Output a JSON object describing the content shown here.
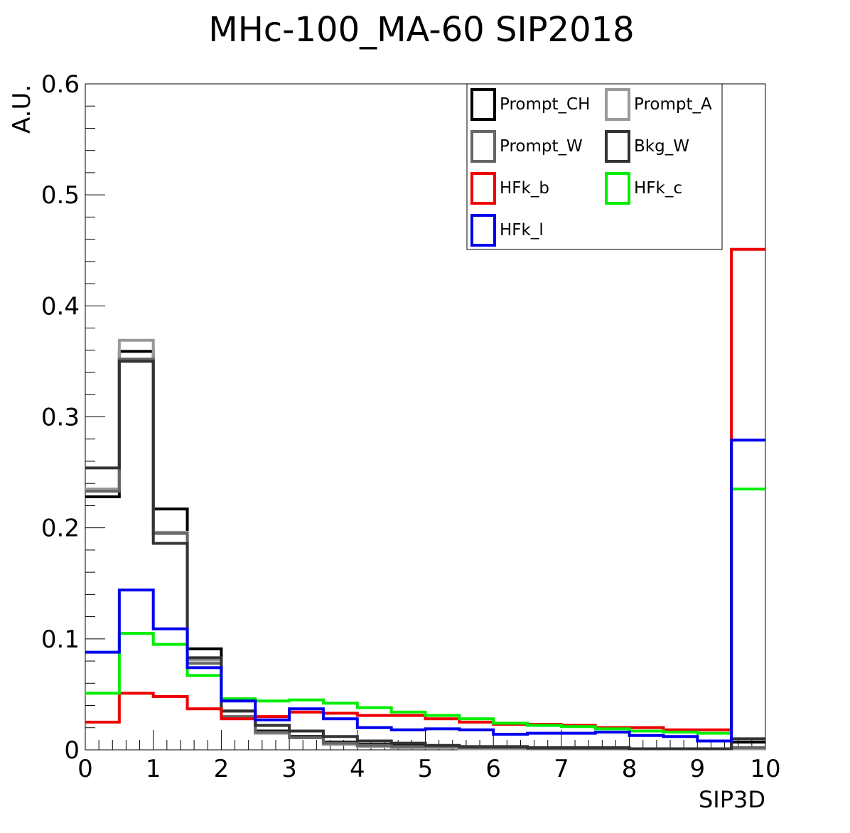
{
  "chart_data": {
    "type": "line",
    "title": "MHc-100_MA-60  SIP2018",
    "xlabel": "SIP3D",
    "ylabel": "A.U.",
    "xlim": [
      0,
      10
    ],
    "ylim": [
      0,
      0.6
    ],
    "x_ticks": [
      "0",
      "1",
      "2",
      "3",
      "4",
      "5",
      "6",
      "7",
      "8",
      "9",
      "10"
    ],
    "y_ticks": [
      "0",
      "0.1",
      "0.2",
      "0.3",
      "0.4",
      "0.5",
      "0.6"
    ],
    "x_tick_values": [
      0,
      1,
      2,
      3,
      4,
      5,
      6,
      7,
      8,
      9,
      10
    ],
    "y_tick_values": [
      0,
      0.1,
      0.2,
      0.3,
      0.4,
      0.5,
      0.6
    ],
    "bin_edges": [
      0,
      0.5,
      1,
      1.5,
      2,
      2.5,
      3,
      3.5,
      4,
      4.5,
      5,
      5.5,
      6,
      6.5,
      7,
      7.5,
      8,
      8.5,
      9,
      9.5,
      10
    ],
    "legend_position": "top-right",
    "grid": false,
    "series": [
      {
        "name": "Prompt_CH",
        "color": "#000000",
        "values": [
          0.228,
          0.359,
          0.217,
          0.091,
          0.035,
          0.017,
          0.012,
          0.007,
          0.005,
          0.004,
          0.003,
          0.002,
          0.002,
          0.001,
          0.001,
          0.001,
          0.001,
          0.001,
          0.001,
          0.007
        ]
      },
      {
        "name": "Prompt_A",
        "color": "#999999",
        "values": [
          0.235,
          0.369,
          0.196,
          0.081,
          0.03,
          0.015,
          0.011,
          0.005,
          0.003,
          0.002,
          0.002,
          0.001,
          0.001,
          0.001,
          0.001,
          0.001,
          0.001,
          0.001,
          0.001,
          0.001
        ]
      },
      {
        "name": "Prompt_W",
        "color": "#666666",
        "values": [
          0.233,
          0.352,
          0.195,
          0.078,
          0.03,
          0.016,
          0.011,
          0.006,
          0.004,
          0.003,
          0.003,
          0.002,
          0.002,
          0.001,
          0.001,
          0.001,
          0.001,
          0.001,
          0.001,
          0.002
        ]
      },
      {
        "name": "Bkg_W",
        "color": "#333333",
        "values": [
          0.254,
          0.35,
          0.186,
          0.083,
          0.035,
          0.022,
          0.017,
          0.012,
          0.008,
          0.006,
          0.004,
          0.003,
          0.003,
          0.002,
          0.002,
          0.002,
          0.001,
          0.001,
          0.001,
          0.01
        ]
      },
      {
        "name": "HFk_b",
        "color": "#ee0000",
        "values": [
          0.025,
          0.051,
          0.048,
          0.037,
          0.028,
          0.03,
          0.034,
          0.033,
          0.031,
          0.031,
          0.028,
          0.025,
          0.023,
          0.023,
          0.022,
          0.02,
          0.02,
          0.018,
          0.018,
          0.451
        ]
      },
      {
        "name": "HFk_c",
        "color": "#00ee00",
        "values": [
          0.051,
          0.105,
          0.095,
          0.067,
          0.046,
          0.044,
          0.045,
          0.042,
          0.038,
          0.034,
          0.031,
          0.028,
          0.024,
          0.022,
          0.021,
          0.019,
          0.017,
          0.016,
          0.015,
          0.235
        ]
      },
      {
        "name": "HFk_l",
        "color": "#0000ee",
        "values": [
          0.088,
          0.144,
          0.109,
          0.074,
          0.044,
          0.027,
          0.037,
          0.028,
          0.02,
          0.018,
          0.019,
          0.018,
          0.014,
          0.015,
          0.015,
          0.016,
          0.013,
          0.012,
          0.008,
          0.279
        ]
      }
    ]
  }
}
